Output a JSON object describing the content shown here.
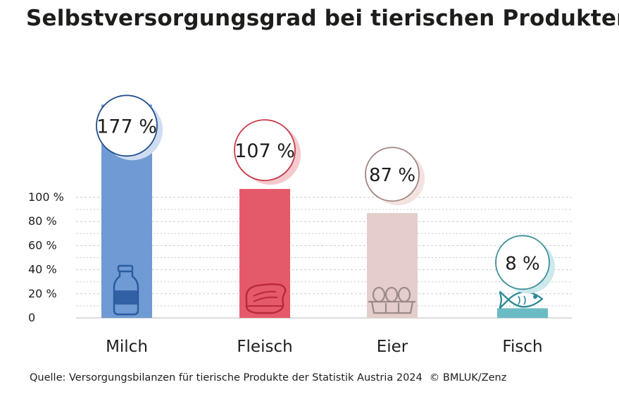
{
  "title": "Selbstversorgungsgrad bei tierischen Produkten",
  "source_text": "Quelle: Versorgungsbilanzen für tierische Produkte der Statistik Austria 2024",
  "copyright": "© BMLUK/Zenz",
  "chart_data": {
    "type": "bar",
    "title": "Selbstversorgungsgrad bei tierischen Produkten",
    "categories": [
      "Milch",
      "Fleisch",
      "Eier",
      "Fisch"
    ],
    "values": [
      177,
      107,
      87,
      8
    ],
    "value_labels": [
      "177 %",
      "107 %",
      "87 %",
      "8 %"
    ],
    "ylim": [
      0,
      100
    ],
    "yticks": [
      0,
      20,
      40,
      60,
      80,
      100
    ],
    "ytick_labels": [
      "0",
      "20 %",
      "40 %",
      "60 %",
      "80 %",
      "100 %"
    ],
    "xlabel": "",
    "ylabel": "",
    "grid": true,
    "colors": [
      "#6f9ad3",
      "#e55a6a",
      "#e4cdca",
      "#6bbbc4"
    ],
    "label_colors": [
      "#1f4e8c",
      "#c73a4a",
      "#a08480",
      "#3d8f98"
    ],
    "shadow_colors": [
      "#cfdcf2",
      "#f5c9cd",
      "#f2e2e0",
      "#cde9ec"
    ],
    "icons": [
      "milk-bottle-icon",
      "steak-icon",
      "egg-carton-icon",
      "fish-icon"
    ]
  }
}
